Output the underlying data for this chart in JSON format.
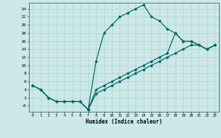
{
  "xlabel": "Humidex (Indice chaleur)",
  "bg_color": "#cde8e8",
  "grid_color": "#aad4d4",
  "line_color": "#006666",
  "xlim": [
    -0.5,
    23.5
  ],
  "ylim": [
    -1.5,
    25.5
  ],
  "xticks": [
    0,
    1,
    2,
    3,
    4,
    5,
    6,
    7,
    8,
    9,
    10,
    11,
    12,
    13,
    14,
    15,
    16,
    17,
    18,
    19,
    20,
    21,
    22,
    23
  ],
  "yticks": [
    0,
    2,
    4,
    6,
    8,
    10,
    12,
    14,
    16,
    18,
    20,
    22,
    24
  ],
  "line1_y": [
    5,
    4,
    2,
    1,
    1,
    1,
    1,
    -1,
    11,
    18,
    20,
    22,
    23,
    24,
    25,
    22,
    21,
    19,
    18,
    16,
    16,
    15,
    14,
    15
  ],
  "line2_y": [
    5,
    4,
    2,
    1,
    1,
    1,
    1,
    -1,
    4,
    5,
    6,
    7,
    8,
    9,
    10,
    11,
    12,
    13,
    18,
    16,
    16,
    15,
    14,
    15
  ],
  "line3_y": [
    5,
    4,
    2,
    1,
    1,
    1,
    1,
    -1,
    3,
    4,
    5,
    6,
    7,
    8,
    9,
    10,
    11,
    12,
    13,
    14,
    15,
    15,
    14,
    15
  ]
}
